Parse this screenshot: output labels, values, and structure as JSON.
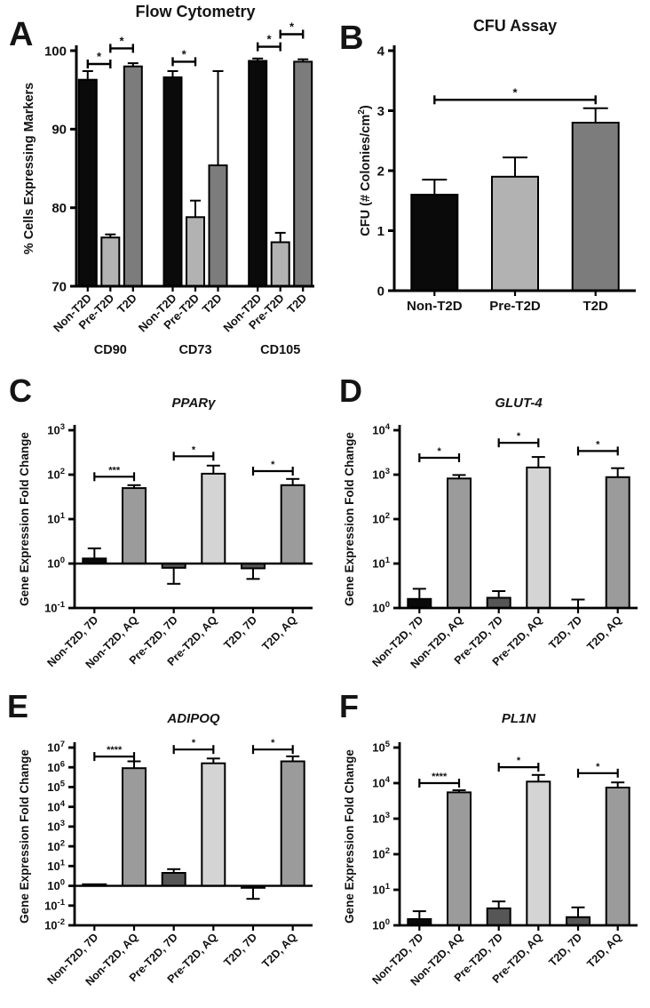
{
  "figure": {
    "background": "#ffffff"
  },
  "palette": {
    "black": "#0a0a0a",
    "pre_gray": "#b2b2b2",
    "t2d_gray": "#7c7c7c",
    "aq_gray": "#9b9b9b",
    "aq_pale": "#d4d4d4",
    "deep_gray": "#565656"
  },
  "chart_data": [
    {
      "panel": "A",
      "type": "bar",
      "title": "Flow Cytometry",
      "ylabel": "% Cells Expressing Markers",
      "scale": "linear",
      "ylim": [
        70,
        100
      ],
      "yticks": [
        70,
        80,
        90,
        100
      ],
      "baseline": 70,
      "group_size": 3,
      "groups": [
        "CD90",
        "CD73",
        "CD105"
      ],
      "categories": [
        "Non-T2D",
        "Pre-T2D",
        "T2D",
        "Non-T2D",
        "Pre-T2D",
        "T2D",
        "Non-T2D",
        "Pre-T2D",
        "T2D"
      ],
      "values": [
        96.3,
        76.2,
        98.0,
        96.6,
        78.8,
        85.4,
        98.7,
        75.6,
        98.6
      ],
      "err_hi": [
        97.4,
        76.6,
        98.4,
        97.4,
        80.9,
        97.4,
        99.0,
        76.8,
        98.9
      ],
      "err_lo": [
        null,
        null,
        null,
        null,
        null,
        null,
        null,
        null,
        null
      ],
      "colors": [
        "black",
        "pre_gray",
        "t2d_gray",
        "black",
        "pre_gray",
        "t2d_gray",
        "black",
        "pre_gray",
        "t2d_gray"
      ],
      "sig": [
        {
          "a": 0,
          "b": 1,
          "y": 98.3,
          "label": "*"
        },
        {
          "a": 1,
          "b": 2,
          "y": 100.3,
          "label": "*"
        },
        {
          "a": 3,
          "b": 4,
          "y": 98.6,
          "label": "*"
        },
        {
          "a": 6,
          "b": 7,
          "y": 100.5,
          "label": "*"
        },
        {
          "a": 7,
          "b": 8,
          "y": 102.1,
          "label": "*"
        }
      ]
    },
    {
      "panel": "B",
      "type": "bar",
      "title": "CFU Assay",
      "ylabel_parts": [
        {
          "t": "CFU (# Colonies/cm"
        },
        {
          "t": "2",
          "sup": true
        },
        {
          "t": ")"
        }
      ],
      "scale": "linear",
      "ylim": [
        0,
        4
      ],
      "yticks": [
        0,
        1,
        2,
        3,
        4
      ],
      "baseline": 0,
      "categories": [
        "Non-T2D",
        "Pre-T2D",
        "T2D"
      ],
      "values": [
        1.6,
        1.9,
        2.8
      ],
      "err_hi": [
        1.85,
        2.22,
        3.04
      ],
      "err_lo": [
        null,
        null,
        null
      ],
      "colors": [
        "black",
        "pre_gray",
        "t2d_gray"
      ],
      "sig": [
        {
          "a": 0,
          "b": 2,
          "y": 3.18,
          "label": "*"
        }
      ]
    },
    {
      "panel": "C",
      "type": "bar",
      "title": "PPARγ",
      "ylabel": "Gene Expression Fold Change",
      "scale": "log",
      "ylim": [
        0.1,
        1000
      ],
      "yticks": [
        0.1,
        1,
        10,
        100,
        1000
      ],
      "baseline": 1,
      "categories": [
        "Non-T2D, 7D",
        "Non-T2D, AQ",
        "Pre-T2D, 7D",
        "Pre-T2D, AQ",
        "T2D, 7D",
        "T2D, AQ"
      ],
      "values": [
        1.3,
        50,
        0.8,
        105,
        0.78,
        58
      ],
      "err_hi": [
        2.2,
        58,
        null,
        160,
        null,
        80
      ],
      "err_lo": [
        null,
        null,
        0.35,
        null,
        0.45,
        null
      ],
      "colors": [
        "black",
        "aq_gray",
        "deep_gray",
        "aq_pale",
        "deep_gray",
        "aq_gray"
      ],
      "sig": [
        {
          "a": 0,
          "b": 1,
          "y": 90,
          "label": "***"
        },
        {
          "a": 2,
          "b": 3,
          "y": 260,
          "label": "*"
        },
        {
          "a": 4,
          "b": 5,
          "y": 120,
          "label": "*"
        }
      ]
    },
    {
      "panel": "D",
      "type": "bar",
      "title": "GLUT-4",
      "ylabel": "Gene Expression Fold Change",
      "scale": "log",
      "ylim": [
        1,
        10000
      ],
      "yticks": [
        1,
        10,
        100,
        1000,
        10000
      ],
      "baseline": 1,
      "categories": [
        "Non-T2D, 7D",
        "Non-T2D, AQ",
        "Pre-T2D, 7D",
        "Pre-T2D, AQ",
        "T2D, 7D",
        "T2D, AQ"
      ],
      "values": [
        1.6,
        820,
        1.7,
        1450,
        1.02,
        880
      ],
      "err_hi": [
        2.7,
        980,
        2.4,
        2500,
        1.55,
        1400
      ],
      "err_lo": [
        null,
        null,
        null,
        null,
        null,
        null
      ],
      "colors": [
        "black",
        "aq_gray",
        "deep_gray",
        "aq_pale",
        "deep_gray",
        "aq_gray"
      ],
      "sig": [
        {
          "a": 0,
          "b": 1,
          "y": 2400,
          "label": "*"
        },
        {
          "a": 2,
          "b": 3,
          "y": 5200,
          "label": "*"
        },
        {
          "a": 4,
          "b": 5,
          "y": 3400,
          "label": "*"
        }
      ]
    },
    {
      "panel": "E",
      "type": "bar",
      "title": "ADIPOQ",
      "ylabel": "Gene Expression Fold Change",
      "scale": "log",
      "ylim": [
        0.01,
        10000000
      ],
      "yticks": [
        0.01,
        0.1,
        1,
        10,
        100,
        1000,
        10000,
        100000,
        1000000,
        10000000
      ],
      "baseline": 1,
      "categories": [
        "Non-T2D, 7D",
        "Non-T2D, AQ",
        "Pre-T2D, 7D",
        "Pre-T2D, AQ",
        "T2D, 7D",
        "T2D, AQ"
      ],
      "values": [
        1.2,
        900000,
        4.5,
        1600000,
        0.8,
        2000000
      ],
      "err_hi": [
        null,
        2000000,
        7,
        2800000,
        null,
        3600000
      ],
      "err_lo": [
        null,
        null,
        null,
        null,
        0.22,
        null
      ],
      "colors": [
        "black",
        "aq_gray",
        "deep_gray",
        "aq_pale",
        "black",
        "aq_gray"
      ],
      "sig": [
        {
          "a": 0,
          "b": 1,
          "y": 3500000,
          "label": "****"
        },
        {
          "a": 2,
          "b": 3,
          "y": 8000000,
          "label": "*"
        },
        {
          "a": 4,
          "b": 5,
          "y": 8000000,
          "label": "*"
        }
      ]
    },
    {
      "panel": "F",
      "type": "bar",
      "title": "PL1N",
      "ylabel": "Gene Expression Fold Change",
      "scale": "log",
      "ylim": [
        1,
        100000
      ],
      "yticks": [
        1,
        10,
        100,
        1000,
        10000,
        100000
      ],
      "baseline": 1,
      "categories": [
        "Non-T2D, 7D",
        "Non-T2D, AQ",
        "Pre-T2D, 7D",
        "Pre-T2D, AQ",
        "T2D, 7D",
        "T2D, AQ"
      ],
      "values": [
        1.5,
        5500,
        3.0,
        11000,
        1.7,
        7500
      ],
      "err_hi": [
        2.5,
        6300,
        4.7,
        17000,
        3.2,
        10500
      ],
      "err_lo": [
        null,
        null,
        null,
        null,
        null,
        null
      ],
      "colors": [
        "black",
        "aq_gray",
        "deep_gray",
        "aq_pale",
        "deep_gray",
        "aq_gray"
      ],
      "sig": [
        {
          "a": 0,
          "b": 1,
          "y": 10000,
          "label": "****"
        },
        {
          "a": 2,
          "b": 3,
          "y": 28000,
          "label": "*"
        },
        {
          "a": 4,
          "b": 5,
          "y": 19000,
          "label": "*"
        }
      ]
    }
  ]
}
